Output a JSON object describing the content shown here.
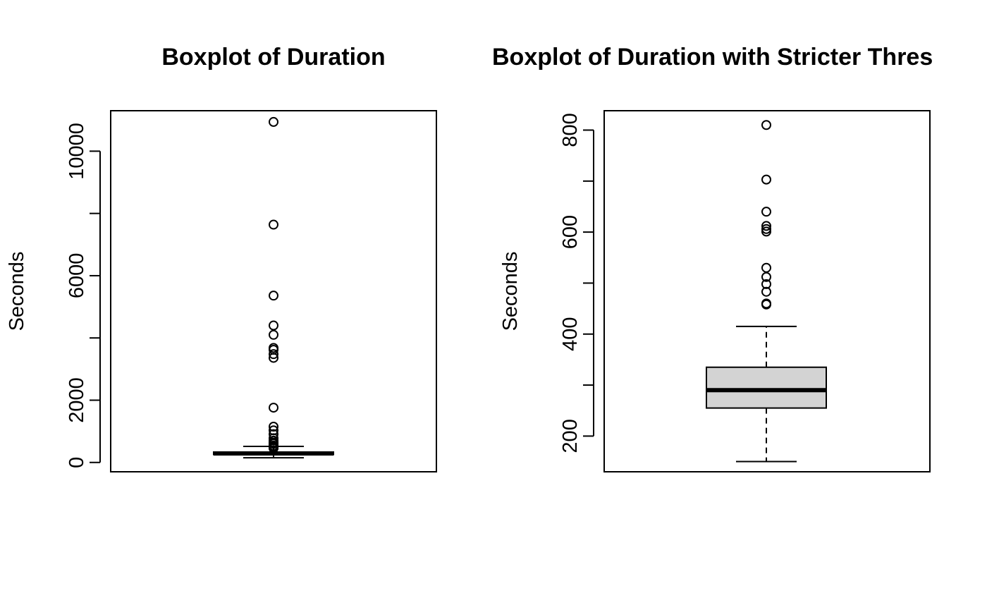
{
  "chart_data": [
    {
      "type": "boxplot",
      "title": "Boxplot of Duration",
      "xlabel": "",
      "ylabel": "Seconds",
      "ylim": [
        -300,
        11300
      ],
      "yticks": [
        0,
        2000,
        6000,
        10000
      ],
      "ytick_labels": [
        "0",
        "2000",
        "6000",
        "10000"
      ],
      "yticks_unlabeled": [
        4000,
        8000
      ],
      "box_fill": "#d3d3d3",
      "stats": {
        "whisker_low": 150,
        "q1": 255,
        "median": 290,
        "q3": 335,
        "whisker_high": 515
      },
      "outliers": [
        10940,
        7640,
        5360,
        4400,
        4100,
        3680,
        3620,
        3480,
        3360,
        1760,
        1150,
        1030,
        910,
        780,
        700,
        640,
        610,
        600,
        540,
        530,
        500,
        490,
        460,
        460,
        520
      ]
    },
    {
      "type": "boxplot",
      "title": "Boxplot of Duration with Stricter Thres",
      "xlabel": "",
      "ylabel": "Seconds",
      "ylim": [
        130,
        838
      ],
      "yticks": [
        200,
        300,
        400,
        500,
        600,
        700,
        800
      ],
      "ytick_labels": [
        "200",
        "",
        "400",
        "",
        "600",
        "",
        "800"
      ],
      "box_fill": "#d3d3d3",
      "stats": {
        "whisker_low": 150,
        "q1": 255,
        "median": 290,
        "q3": 335,
        "whisker_high": 415
      },
      "outliers": [
        810,
        703,
        640,
        612,
        606,
        601,
        530,
        512,
        498,
        483,
        460,
        458
      ]
    }
  ]
}
